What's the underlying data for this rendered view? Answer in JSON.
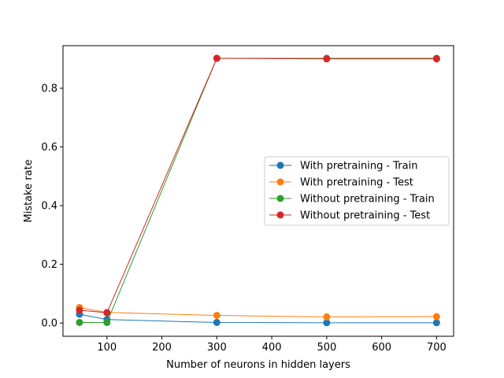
{
  "chart_data": {
    "type": "line",
    "title": "",
    "xlabel": "Number of neurons in hidden layers",
    "ylabel": "Mistake rate",
    "x": [
      50,
      100,
      300,
      500,
      700
    ],
    "xlim": [
      20,
      731
    ],
    "ylim": [
      -0.045,
      0.945
    ],
    "xticks": [
      100,
      200,
      300,
      400,
      500,
      600,
      700
    ],
    "yticks": [
      0.0,
      0.2,
      0.4,
      0.6,
      0.8
    ],
    "xtick_labels": [
      "100",
      "200",
      "300",
      "400",
      "500",
      "600",
      "700"
    ],
    "ytick_labels": [
      "0.0",
      "0.2",
      "0.4",
      "0.6",
      "0.8"
    ],
    "grid": false,
    "legend_position": "center-right",
    "series": [
      {
        "name": "With pretraining - Train",
        "color": "#1f77b4",
        "values": [
          0.03,
          0.012,
          0.002,
          0.001,
          0.001
        ]
      },
      {
        "name": "With pretraining - Test",
        "color": "#ff7f0e",
        "values": [
          0.053,
          0.036,
          0.026,
          0.021,
          0.022
        ]
      },
      {
        "name": "Without pretraining - Train",
        "color": "#2ca02c",
        "values": [
          0.002,
          0.002,
          0.902,
          0.902,
          0.902
        ]
      },
      {
        "name": "Without pretraining - Test",
        "color": "#d62728",
        "values": [
          0.044,
          0.035,
          0.902,
          0.9,
          0.9
        ]
      }
    ]
  }
}
